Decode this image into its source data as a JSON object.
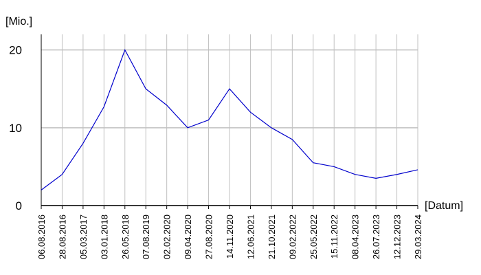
{
  "chart_data": {
    "type": "line",
    "y_label": "[Mio.]",
    "x_label": "[Datum]",
    "categories": [
      "06.08.2016",
      "28.08.2016",
      "05.03.2017",
      "03.01.2018",
      "26.05.2018",
      "07.08.2019",
      "02.02.2020",
      "09.04.2020",
      "27.08.2020",
      "14.11.2020",
      "12.06.2021",
      "21.10.2021",
      "09.02.2022",
      "25.05.2022",
      "15.11.2022",
      "08.04.2023",
      "26.07.2023",
      "12.12.2023",
      "29.03.2024"
    ],
    "series": [
      {
        "color": "#0000cc",
        "values": [
          2,
          4,
          8,
          12.7,
          20,
          15,
          12.9,
          10,
          11,
          15,
          12,
          10,
          8.5,
          5.5,
          5,
          4,
          3.5,
          4,
          4.6
        ]
      }
    ],
    "ylim": [
      0,
      22
    ],
    "yticks": [
      0,
      10,
      20
    ],
    "grid": true
  }
}
